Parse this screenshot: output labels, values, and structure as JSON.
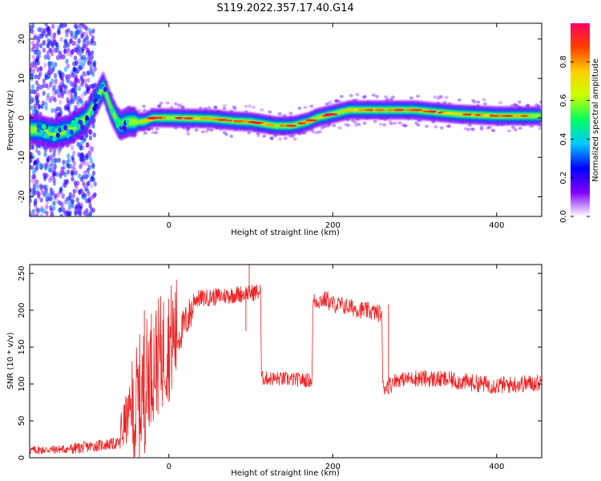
{
  "figure": {
    "title": "S119.2022.357.17.40.G14"
  },
  "chart_data": [
    {
      "type": "heatmap",
      "xlabel": "Height of straight line (km)",
      "ylabel": "Frequency (Hz)",
      "xlim": [
        -170,
        455
      ],
      "ylim": [
        -25,
        24
      ],
      "xticks": [
        0,
        200,
        400
      ],
      "yticks": [
        -20,
        -10,
        0,
        10,
        20
      ],
      "grid": false,
      "ridge": {
        "x": [
          -160,
          -140,
          -120,
          -100,
          -90,
          -80,
          -70,
          -60,
          -50,
          -40,
          -30,
          -20,
          0,
          50,
          80,
          100,
          115,
          130,
          150,
          160,
          170,
          180,
          200,
          220,
          250,
          300,
          350,
          400,
          455
        ],
        "y": [
          -3,
          -4,
          -3,
          0,
          4,
          8,
          2,
          -2,
          -1,
          -1,
          -1,
          0,
          0,
          -0.2,
          -0.8,
          -1,
          -1.5,
          -2,
          -2,
          -1.5,
          -1,
          0,
          1,
          2,
          2,
          2,
          1,
          0.5,
          0.5
        ]
      },
      "colorbar": {
        "label": "Normalized spectral amplitude",
        "range": [
          0,
          1
        ],
        "ticks": [
          "0.0",
          "0.2",
          "0.4",
          "0.6",
          "0.8"
        ],
        "colors": [
          "#ffffff",
          "#8000ff",
          "#0000ff",
          "#00c8ff",
          "#00ff60",
          "#c8ff00",
          "#ffd000",
          "#ff4000",
          "#ff0060"
        ]
      }
    },
    {
      "type": "line",
      "xlabel": "Height of straight line (km)",
      "ylabel": "SNR (10 * v/v)",
      "xlim": [
        -170,
        455
      ],
      "ylim": [
        0,
        262
      ],
      "xticks": [
        0,
        200,
        400
      ],
      "yticks": [
        0,
        50,
        100,
        150,
        200,
        250
      ],
      "grid": false,
      "color": "#ee2222",
      "segments": [
        {
          "x": [
            -170,
            -120
          ],
          "y": [
            10,
            12
          ],
          "noise": 6
        },
        {
          "x": [
            -120,
            -60
          ],
          "y": [
            12,
            20
          ],
          "noise": 8
        },
        {
          "x": [
            -60,
            -45
          ],
          "y": [
            30,
            70
          ],
          "noise": 35
        },
        {
          "x": [
            -45,
            -25
          ],
          "y": [
            50,
            110
          ],
          "noise": 90
        },
        {
          "x": [
            -25,
            10
          ],
          "y": [
            120,
            170
          ],
          "noise": 80
        },
        {
          "x": [
            10,
            30
          ],
          "y": [
            160,
            205
          ],
          "noise": 25
        },
        {
          "x": [
            30,
            112
          ],
          "y": [
            215,
            225
          ],
          "noise": 12
        },
        {
          "x": [
            113,
            175
          ],
          "y": [
            108,
            105
          ],
          "noise": 10
        },
        {
          "x": [
            176,
            195
          ],
          "y": [
            212,
            215
          ],
          "noise": 12
        },
        {
          "x": [
            195,
            260
          ],
          "y": [
            210,
            195
          ],
          "noise": 12
        },
        {
          "x": [
            261,
            272
          ],
          "y": [
            95,
            100
          ],
          "noise": 12
        },
        {
          "x": [
            273,
            300
          ],
          "y": [
            105,
            108
          ],
          "noise": 10
        },
        {
          "x": [
            300,
            350
          ],
          "y": [
            108,
            105
          ],
          "noise": 12
        },
        {
          "x": [
            350,
            400
          ],
          "y": [
            104,
            98
          ],
          "noise": 12
        },
        {
          "x": [
            400,
            455
          ],
          "y": [
            98,
            102
          ],
          "noise": 12
        }
      ],
      "spikes": [
        {
          "x": 98,
          "y": 262
        },
        {
          "x": 94,
          "y": 172
        },
        {
          "x": 268,
          "y": 208
        },
        {
          "x": 263,
          "y": 95
        },
        {
          "x": -36,
          "y": 6
        },
        {
          "x": -30,
          "y": 200
        }
      ]
    }
  ]
}
